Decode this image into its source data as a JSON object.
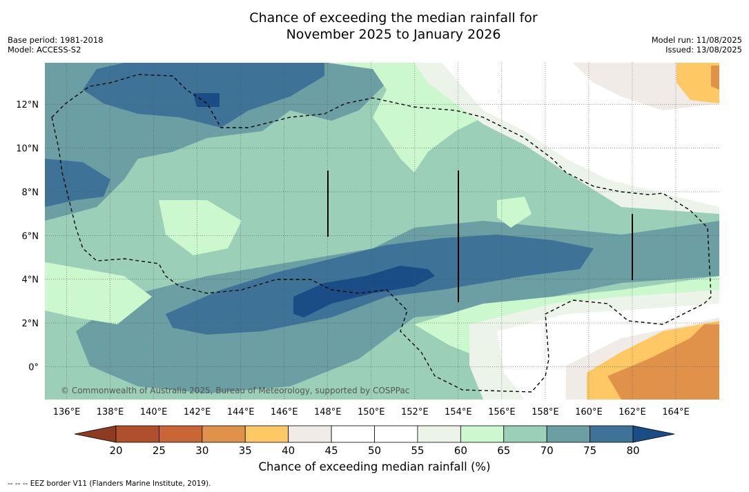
{
  "header": {
    "title_line1": "Chance of exceeding the median rainfall for",
    "title_line2": "November 2025 to January 2026",
    "base_period": "Base period: 1981-2018",
    "model": "Model: ACCESS-S2",
    "model_run": "Model run: 11/08/2025",
    "issued": "Issued: 13/08/2025"
  },
  "map": {
    "lon_labels": [
      "136°E",
      "138°E",
      "140°E",
      "142°E",
      "144°E",
      "146°E",
      "148°E",
      "150°E",
      "152°E",
      "154°E",
      "156°E",
      "158°E",
      "160°E",
      "162°E",
      "164°E"
    ],
    "lat_labels": [
      "12°N",
      "10°N",
      "8°N",
      "6°N",
      "4°N",
      "2°N",
      "0°"
    ],
    "lon_range": [
      135,
      166
    ],
    "lat_range": [
      -1.5,
      13.9
    ],
    "copyright": "© Commonwealth of Australia 2025, Bureau of Meteorology, supported by COSPPac",
    "colors": {
      "c20_25": "#b04f2b",
      "c25_30": "#c96635",
      "c30_35": "#e0924a",
      "c35_40": "#fec965",
      "c40_45": "#f0ebe6",
      "c45_55": "#ffffff",
      "c55_60": "#ecf4ea",
      "c60_65": "#cbf8cc",
      "c65_70": "#9ccfb8",
      "c70_75": "#6b9fa4",
      "c75_80": "#3e7397",
      "c80": "#1a4c86"
    }
  },
  "colorbar": {
    "ticks": [
      "20",
      "25",
      "30",
      "35",
      "40",
      "45",
      "50",
      "55",
      "60",
      "65",
      "70",
      "75",
      "80"
    ],
    "colors": [
      "#b04f2b",
      "#c96635",
      "#e0924a",
      "#fec965",
      "#f0ebe6",
      "#ffffff",
      "#ffffff",
      "#ecf4ea",
      "#cbf8cc",
      "#9ccfb8",
      "#6b9fa4",
      "#3e7397"
    ],
    "under_color": "#8f3b22",
    "over_color": "#1a4c86",
    "label": "Chance of exceeding median rainfall (%)"
  },
  "footnote": "--  --  -- EEZ border V11 (Flanders Marine Institute, 2019)."
}
